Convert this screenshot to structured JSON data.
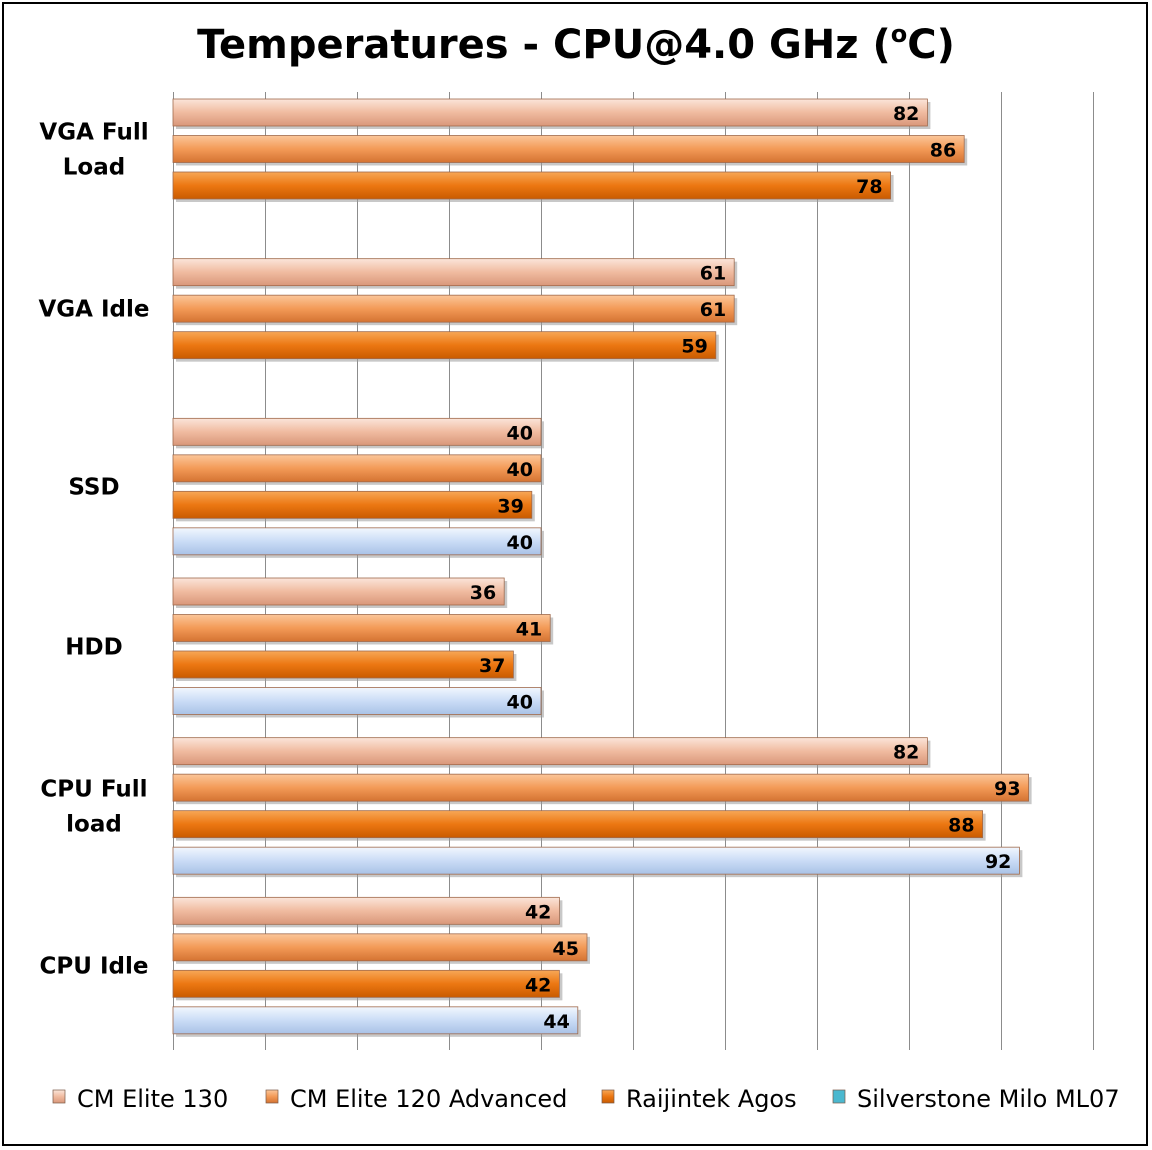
{
  "chart_data": {
    "type": "bar",
    "orientation": "horizontal",
    "title": "Temperatures - CPU@4.0 GHz (",
    "title_sup": "o",
    "title_suffix": "C)",
    "categories": [
      [
        "VGA Full",
        "Load"
      ],
      [
        "VGA Idle"
      ],
      [
        "SSD"
      ],
      [
        "HDD"
      ],
      [
        "CPU Full",
        "load"
      ],
      [
        "CPU Idle"
      ]
    ],
    "series": [
      {
        "name": "CM Elite 130",
        "color": "#f2c1a8",
        "values": [
          82,
          61,
          40,
          36,
          82,
          42
        ]
      },
      {
        "name": "CM Elite 120 Advanced",
        "color": "#f5a062",
        "values": [
          86,
          61,
          40,
          41,
          93,
          45
        ]
      },
      {
        "name": "Raijintek Agos",
        "color": "#ee7c16",
        "values": [
          78,
          59,
          39,
          37,
          88,
          42
        ]
      },
      {
        "name": "Silverstone Milo ML07",
        "color": "#cfe0f7",
        "legend_color": "#4bb8cf",
        "values": [
          null,
          null,
          40,
          40,
          92,
          44
        ]
      }
    ],
    "xlim": [
      0,
      100
    ],
    "grid": true,
    "legend_position": "bottom"
  }
}
